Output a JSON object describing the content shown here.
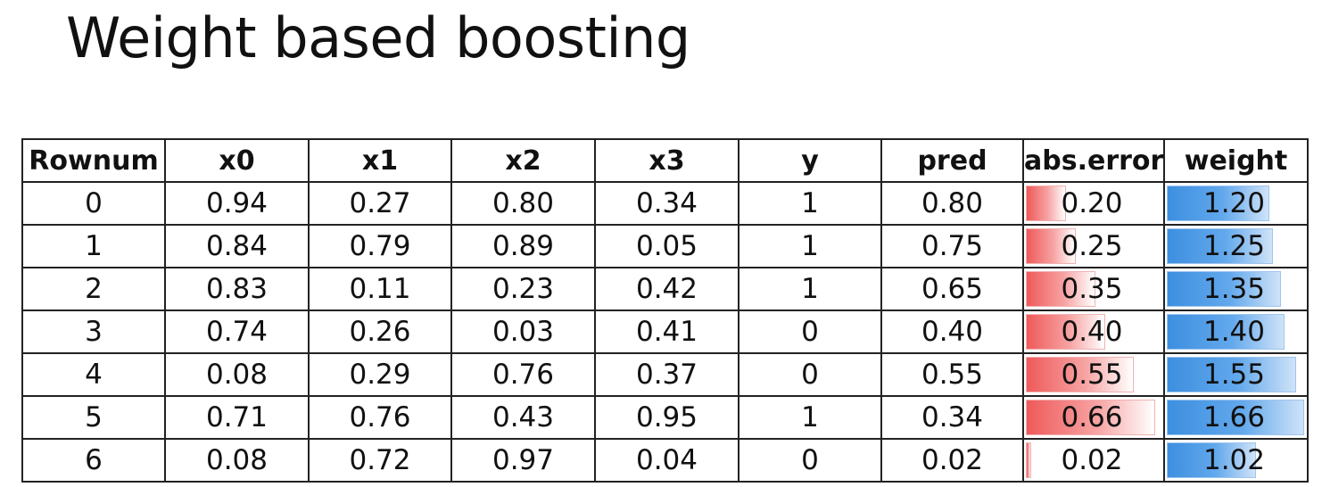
{
  "title": "Weight based boosting",
  "table": {
    "headers": [
      "Rownum",
      "x0",
      "x1",
      "x2",
      "x3",
      "y",
      "pred",
      "abs.error",
      "weight"
    ],
    "rows": [
      {
        "rownum": "0",
        "x0": "0.94",
        "x1": "0.27",
        "x2": "0.80",
        "x3": "0.34",
        "y": "1",
        "pred": "0.80",
        "abs_error": "0.20",
        "weight": "1.20"
      },
      {
        "rownum": "1",
        "x0": "0.84",
        "x1": "0.79",
        "x2": "0.89",
        "x3": "0.05",
        "y": "1",
        "pred": "0.75",
        "abs_error": "0.25",
        "weight": "1.25"
      },
      {
        "rownum": "2",
        "x0": "0.83",
        "x1": "0.11",
        "x2": "0.23",
        "x3": "0.42",
        "y": "1",
        "pred": "0.65",
        "abs_error": "0.35",
        "weight": "1.35"
      },
      {
        "rownum": "3",
        "x0": "0.74",
        "x1": "0.26",
        "x2": "0.03",
        "x3": "0.41",
        "y": "0",
        "pred": "0.40",
        "abs_error": "0.40",
        "weight": "1.40"
      },
      {
        "rownum": "4",
        "x0": "0.08",
        "x1": "0.29",
        "x2": "0.76",
        "x3": "0.37",
        "y": "0",
        "pred": "0.55",
        "abs_error": "0.55",
        "weight": "1.55"
      },
      {
        "rownum": "5",
        "x0": "0.71",
        "x1": "0.76",
        "x2": "0.43",
        "x3": "0.95",
        "y": "1",
        "pred": "0.34",
        "abs_error": "0.66",
        "weight": "1.66"
      },
      {
        "rownum": "6",
        "x0": "0.08",
        "x1": "0.72",
        "x2": "0.97",
        "x3": "0.04",
        "y": "0",
        "pred": "0.02",
        "abs_error": "0.02",
        "weight": "1.02"
      }
    ]
  },
  "colors": {
    "error_bar": "#ef5a5a",
    "weight_bar": "#3d8fe0",
    "border": "#222222"
  }
}
